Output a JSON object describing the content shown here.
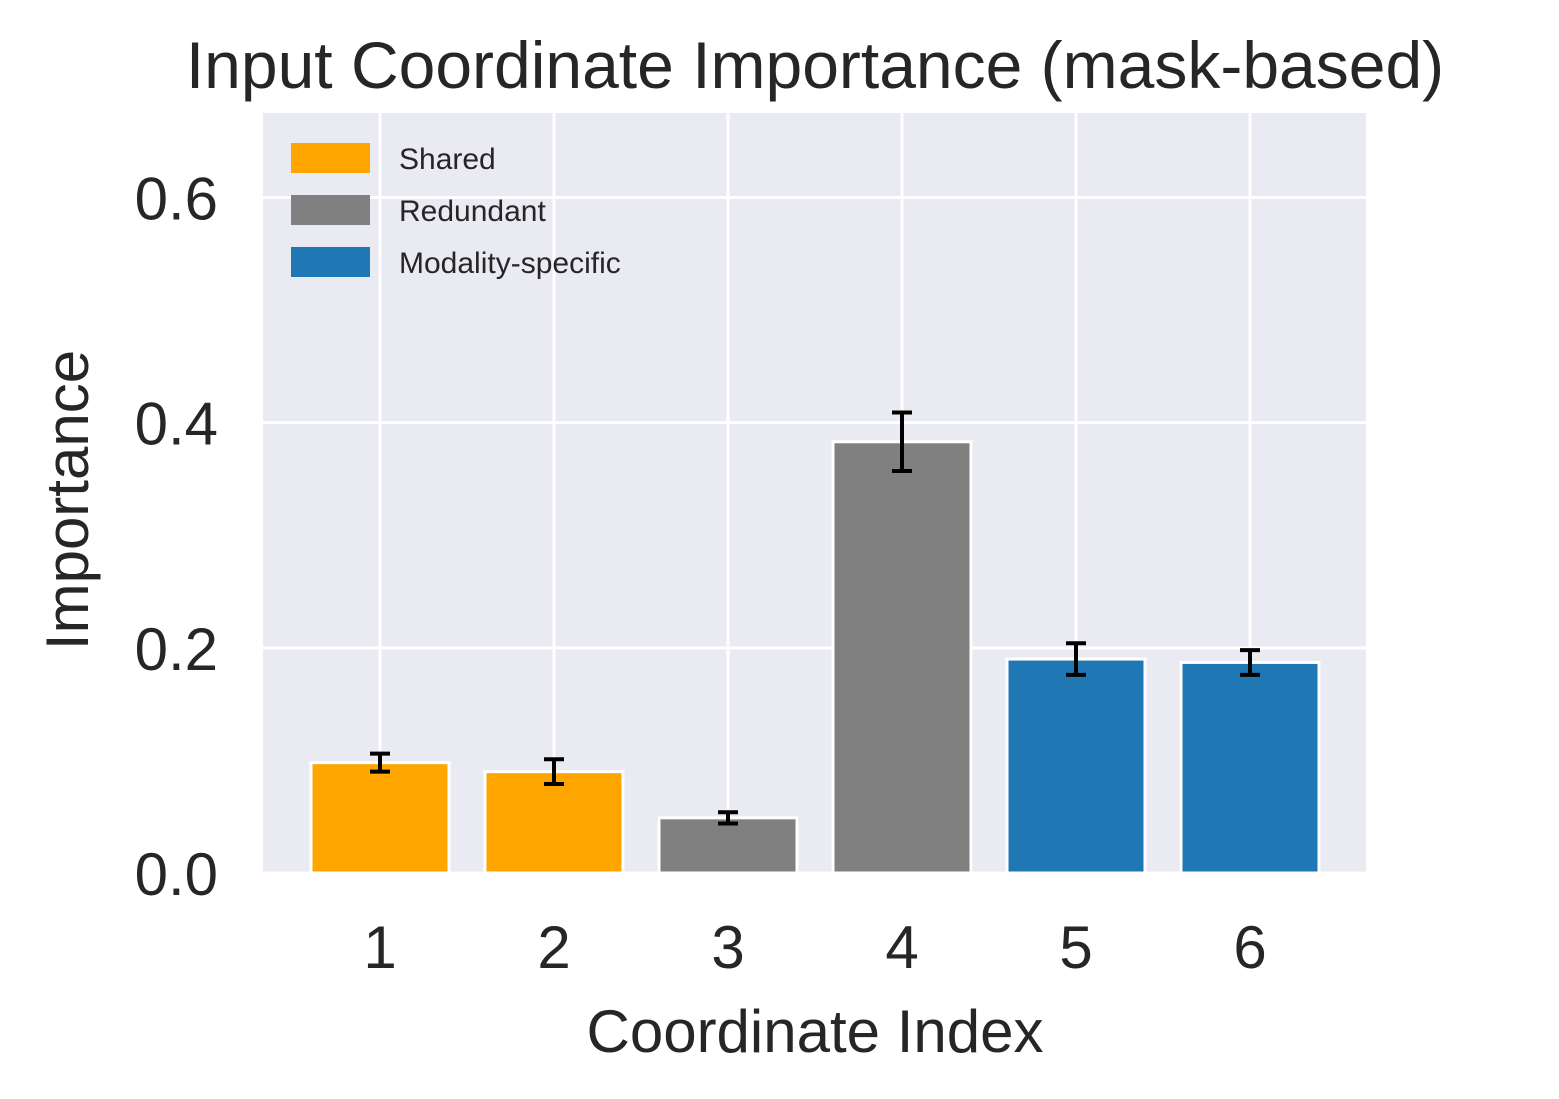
{
  "chart_data": {
    "type": "bar",
    "title": "Input Coordinate Importance (mask-based)",
    "xlabel": "Coordinate Index",
    "ylabel": "Importance",
    "categories": [
      "1",
      "2",
      "3",
      "4",
      "5",
      "6"
    ],
    "values": [
      0.098,
      0.09,
      0.049,
      0.383,
      0.19,
      0.187
    ],
    "errors": [
      0.008,
      0.011,
      0.005,
      0.026,
      0.014,
      0.011
    ],
    "bar_groups": [
      "Shared",
      "Shared",
      "Redundant",
      "Redundant",
      "Modality-specific",
      "Modality-specific"
    ],
    "ylim": [
      0,
      0.675
    ],
    "yticks": [
      0.0,
      0.2,
      0.4,
      0.6
    ],
    "ytick_labels": [
      "0.0",
      "0.2",
      "0.4",
      "0.6"
    ],
    "grid": true,
    "legend": {
      "position": "top-left",
      "entries": [
        {
          "label": "Shared",
          "color": "#ffa500"
        },
        {
          "label": "Redundant",
          "color": "#808080"
        },
        {
          "label": "Modality-specific",
          "color": "#1f77b4"
        }
      ]
    },
    "colors": {
      "plot_background": "#eaeaf2",
      "grid": "#ffffff",
      "error_bar": "#000000"
    }
  }
}
